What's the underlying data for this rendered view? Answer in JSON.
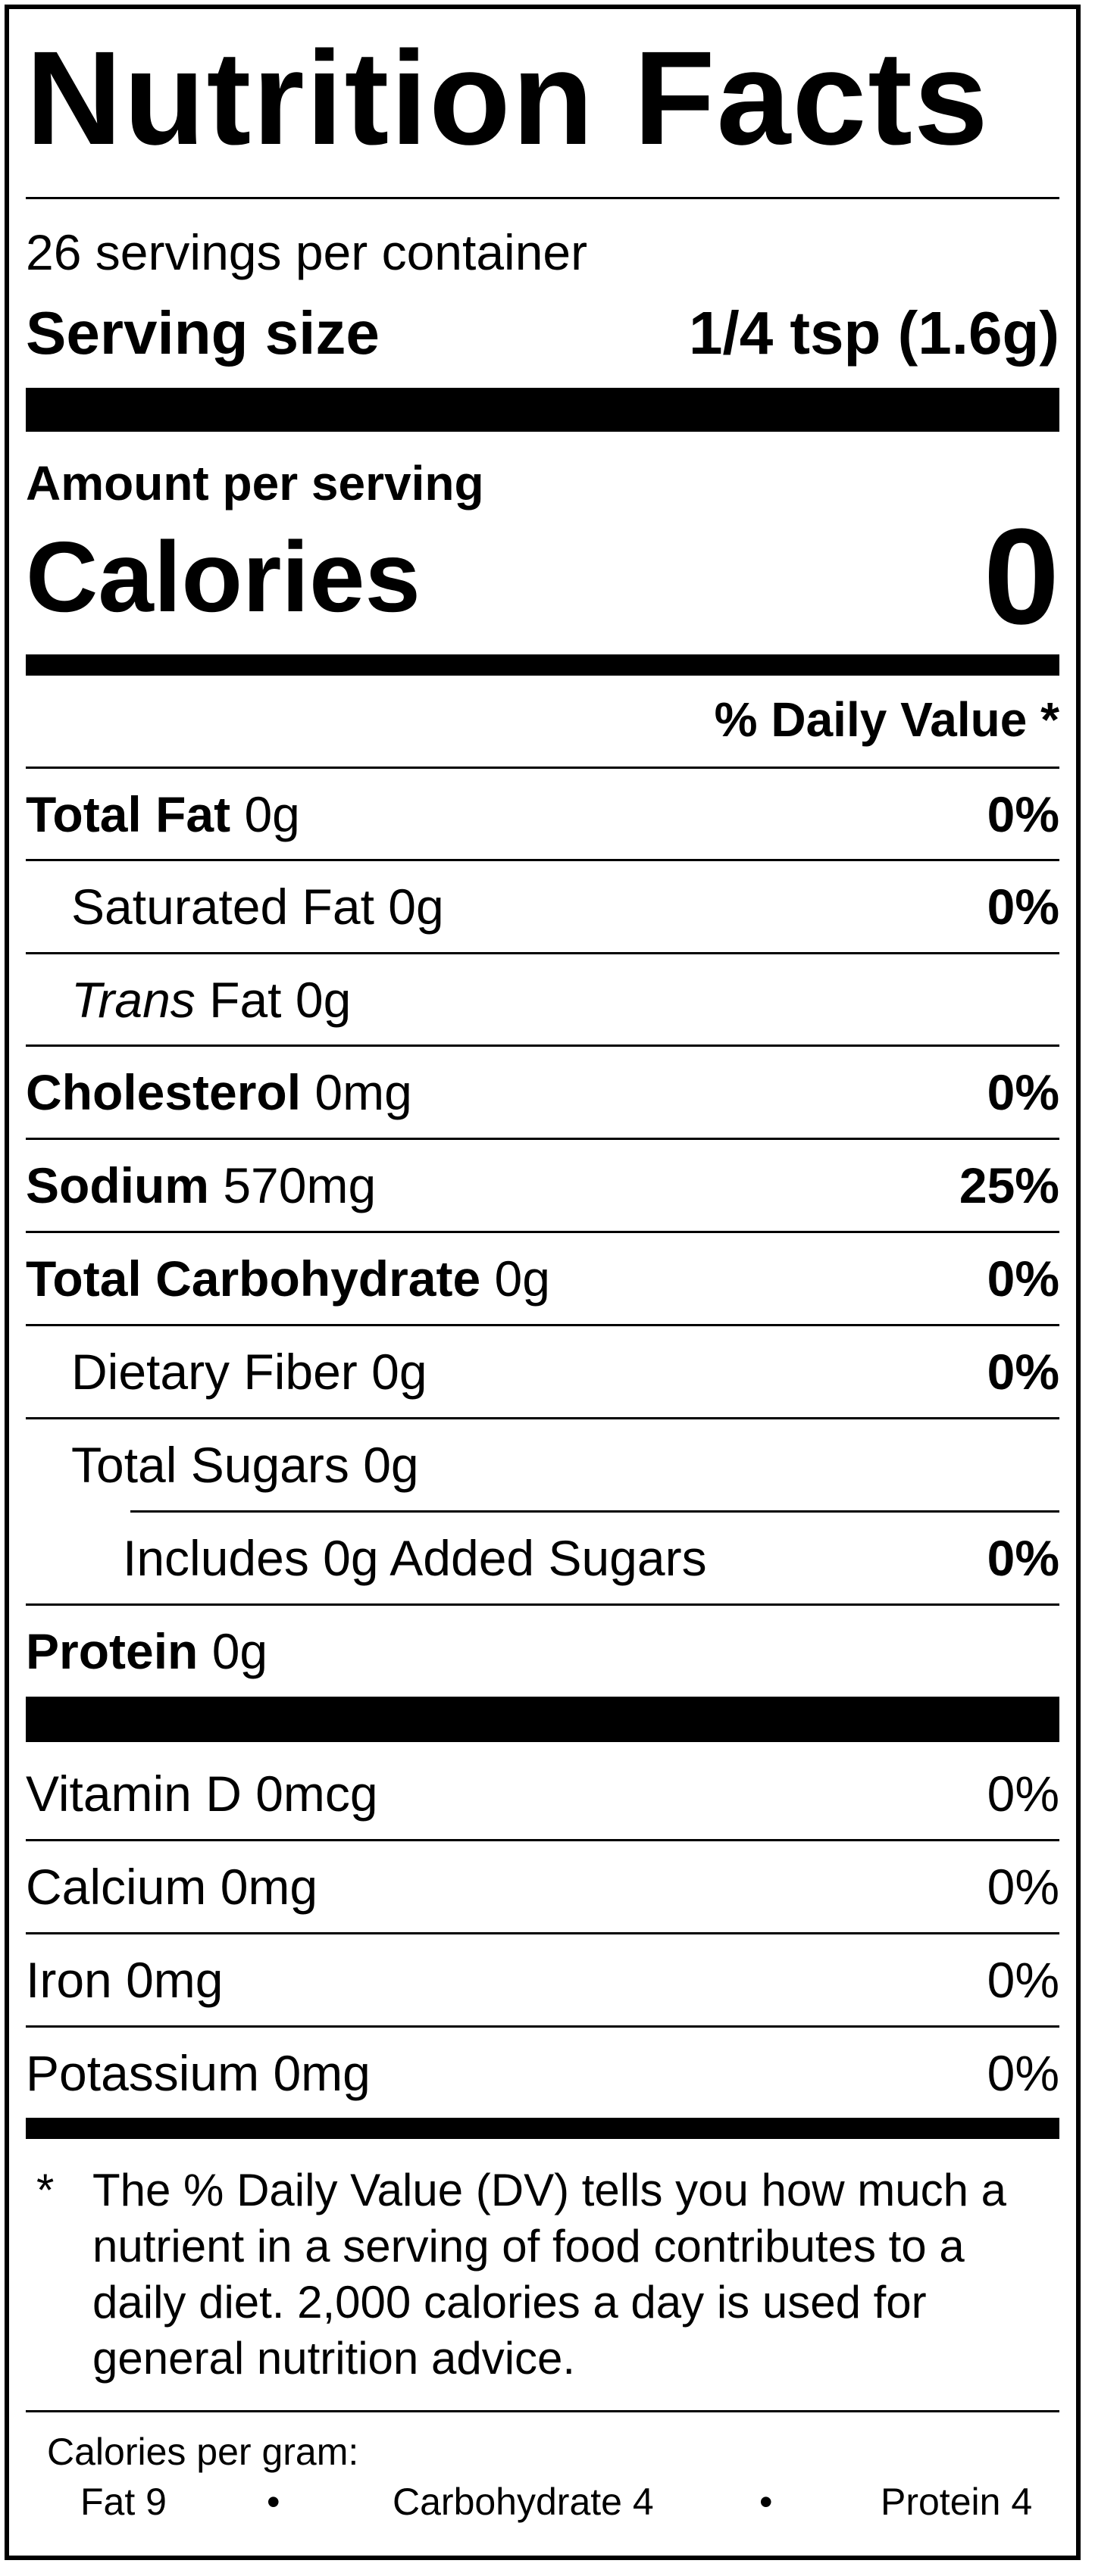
{
  "title": "Nutrition Facts",
  "servings_per_container": "26 servings per container",
  "serving_size_label": "Serving size",
  "serving_size_value": "1/4 tsp (1.6g)",
  "amount_per_serving": "Amount per serving",
  "calories_label": "Calories",
  "calories_value": "0",
  "daily_value_header": "% Daily Value *",
  "nutrients": [
    {
      "name": "Total Fat",
      "amount": "0g",
      "dv": "0%"
    },
    {
      "name": "Saturated Fat",
      "amount": "0g",
      "dv": "0%"
    },
    {
      "name": "Trans",
      "name_rest": "Fat",
      "amount": "0g",
      "dv": ""
    },
    {
      "name": "Cholesterol",
      "amount": "0mg",
      "dv": "0%"
    },
    {
      "name": "Sodium",
      "amount": "570mg",
      "dv": "25%"
    },
    {
      "name": "Total Carbohydrate",
      "amount": "0g",
      "dv": "0%"
    },
    {
      "name": "Dietary Fiber",
      "amount": "0g",
      "dv": "0%"
    },
    {
      "name": "Total Sugars",
      "amount": "0g",
      "dv": ""
    },
    {
      "name": "Includes 0g Added Sugars",
      "amount": "",
      "dv": "0%"
    },
    {
      "name": "Protein",
      "amount": "0g",
      "dv": ""
    }
  ],
  "vitamins": [
    {
      "name": "Vitamin D 0mcg",
      "dv": "0%"
    },
    {
      "name": "Calcium 0mg",
      "dv": "0%"
    },
    {
      "name": "Iron 0mg",
      "dv": "0%"
    },
    {
      "name": "Potassium 0mg",
      "dv": "0%"
    }
  ],
  "footnote_star": "*",
  "footnote": "The % Daily Value (DV) tells you how much a nutrient in a serving of food contributes to a daily diet. 2,000 calories a day is used for general nutrition advice.",
  "calories_per_gram": {
    "heading": "Calories per gram:",
    "fat": "Fat 9",
    "bullet": "•",
    "carbohydrate": "Carbohydrate 4",
    "protein": "Protein 4"
  }
}
